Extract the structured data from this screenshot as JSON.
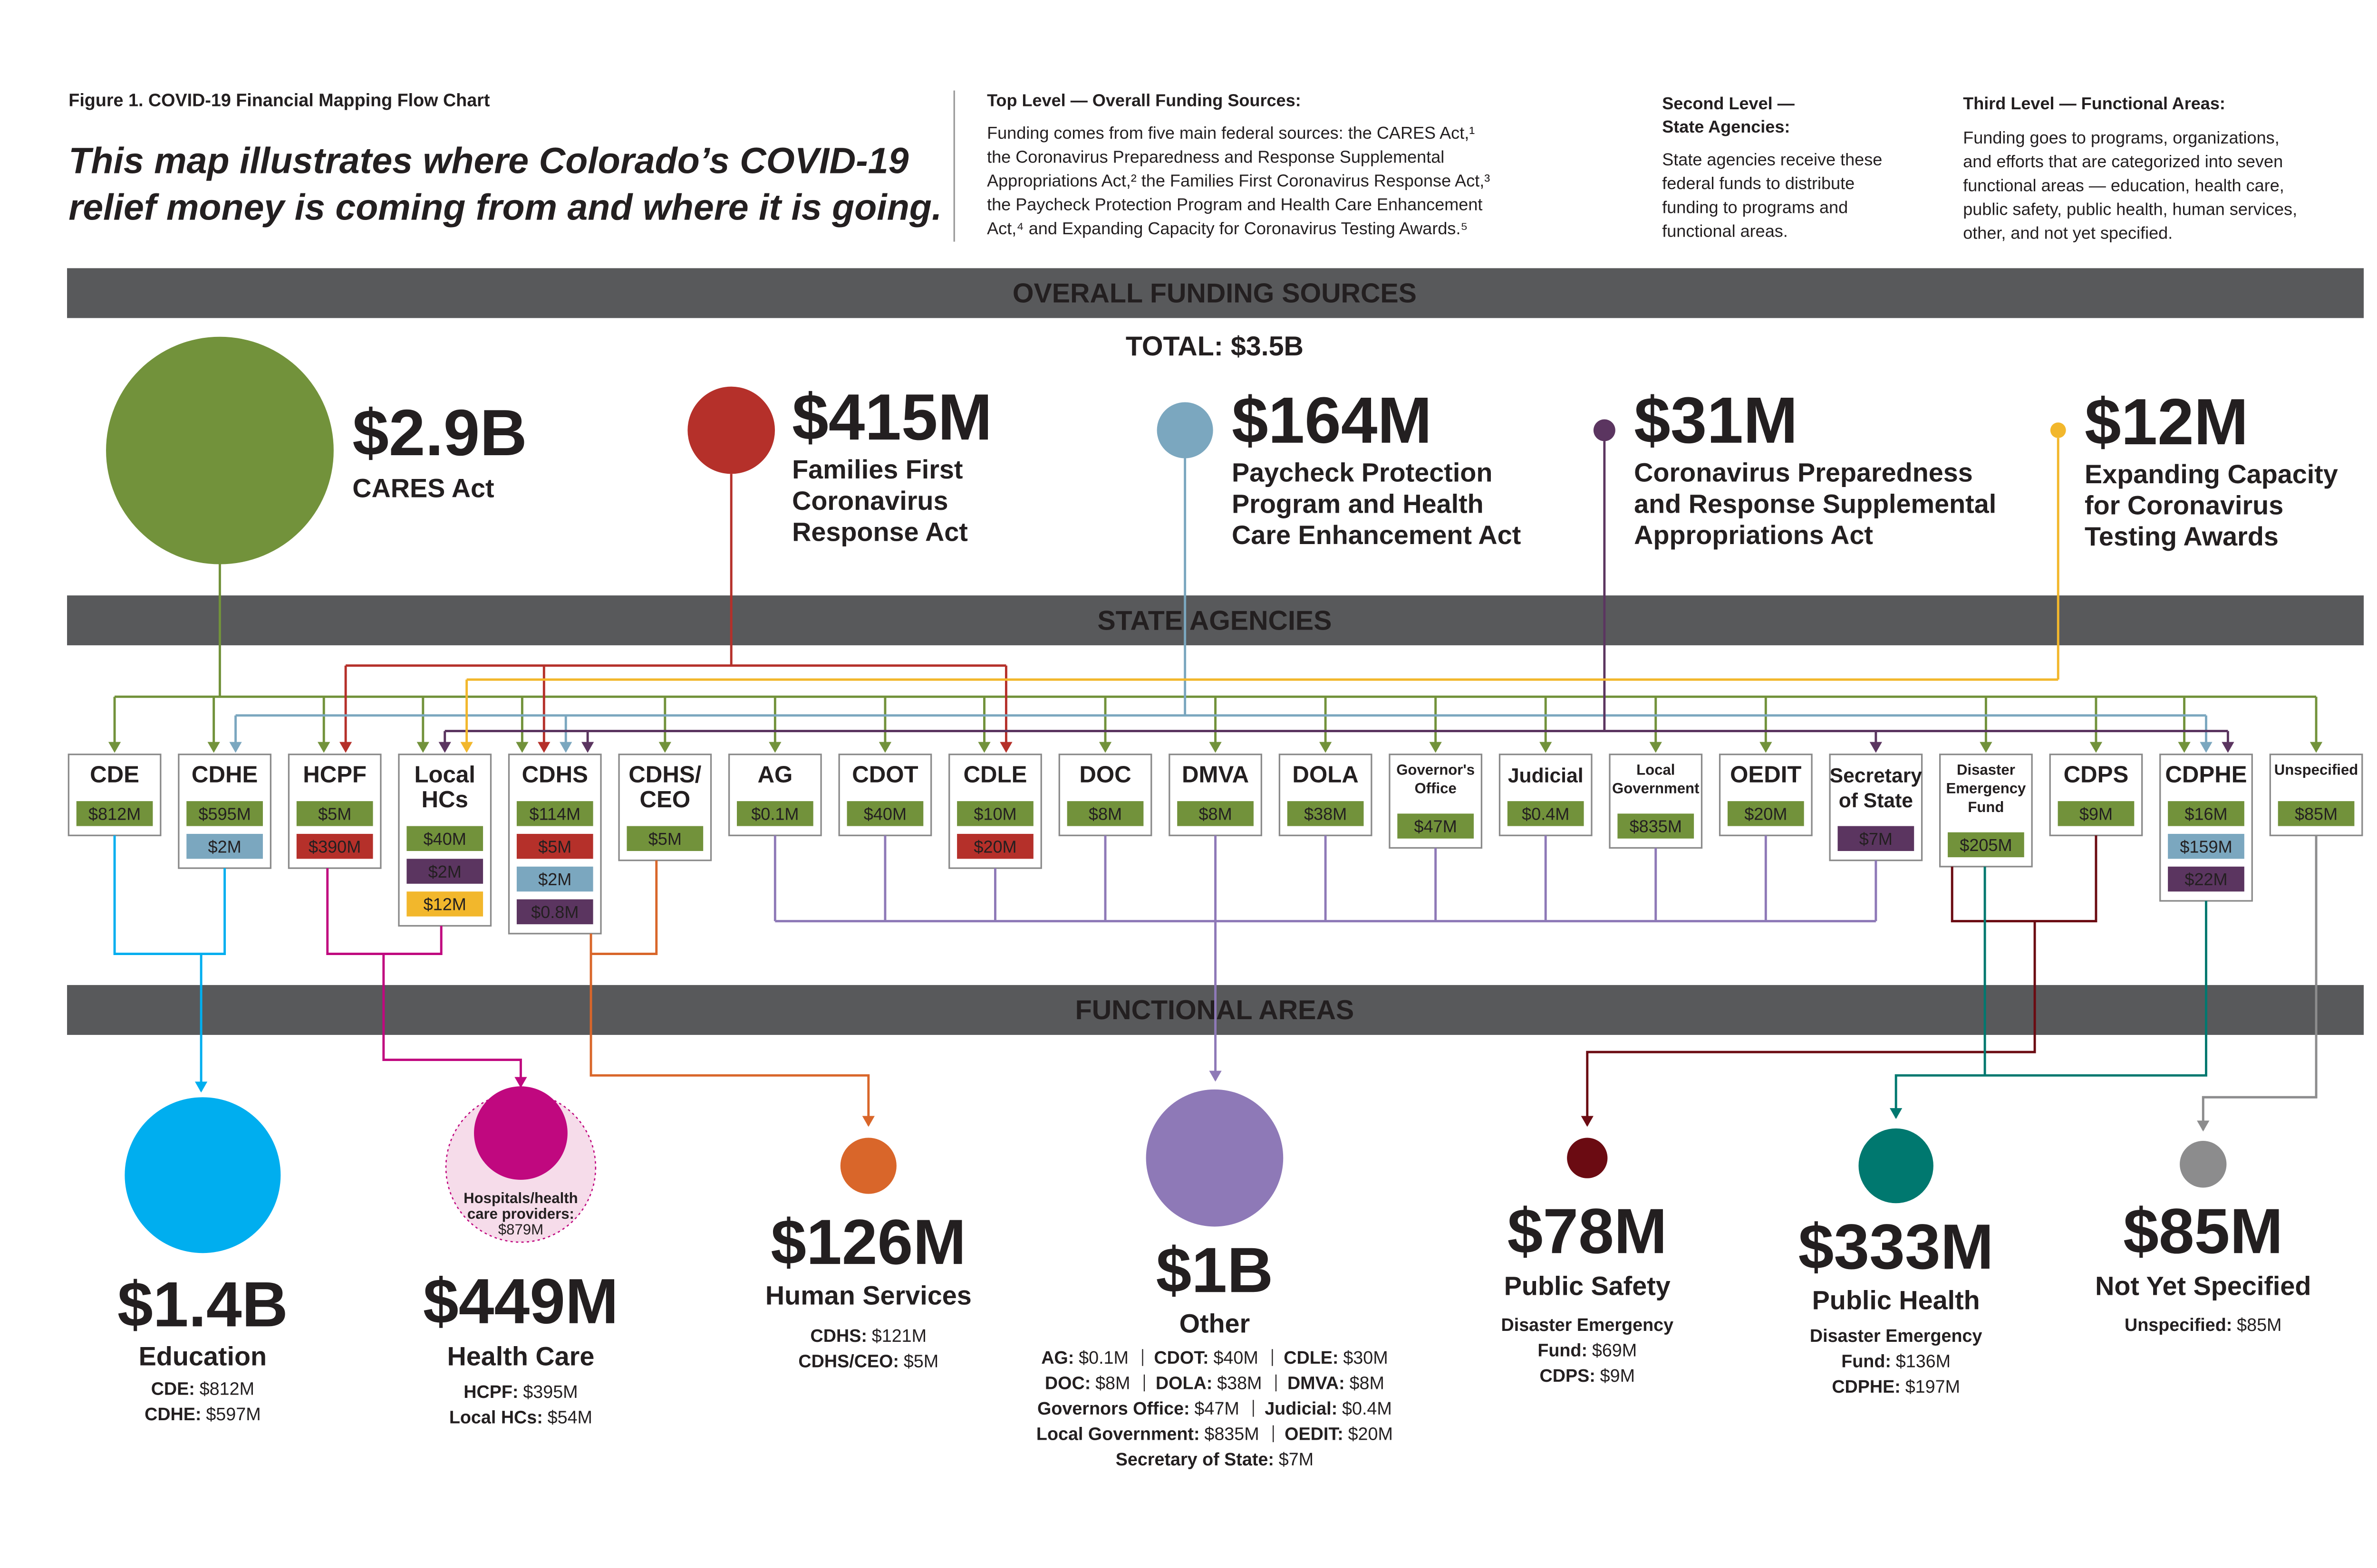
{
  "header": {
    "figure_label": "Figure 1. COVID-19 Financial Mapping Flow Chart",
    "subtitle": [
      "This map illustrates where Colorado’s COVID-19",
      "relief money is coming from and where it is going."
    ],
    "levels": [
      {
        "heading": [
          "Top Level — Overall Funding Sources:"
        ],
        "text": [
          "Funding comes from five main federal sources: the CARES Act,¹",
          "the Coronavirus Preparedness and Response Supplemental",
          "Appropriations Act,² the Families First Coronavirus Response Act,³",
          "the Paycheck Protection Program and Health Care Enhancement",
          "Act,⁴  and Expanding Capacity for Coronavirus Testing Awards.⁵"
        ]
      },
      {
        "heading": [
          "Second Level —",
          "State Agencies:"
        ],
        "text": [
          "State agencies receive these",
          "federal funds to distribute",
          "funding to programs and",
          "functional areas."
        ]
      },
      {
        "heading": [
          "Third Level — Functional Areas:"
        ],
        "text": [
          "Funding goes to programs, organizations,",
          "and efforts that are categorized into seven",
          "functional areas — education, health care,",
          "public safety, public health, human services,",
          "other, and not yet specified."
        ]
      }
    ]
  },
  "bands": [
    "OVERALL FUNDING SOURCES",
    "STATE AGENCIES",
    "FUNCTIONAL AREAS"
  ],
  "total": "TOTAL: $3.5B",
  "sources": [
    {
      "amount": "$2.9B",
      "name": [
        "CARES Act"
      ],
      "color": "#72923b"
    },
    {
      "amount": "$415M",
      "name": [
        "Families First",
        "Coronavirus",
        "Response Act"
      ],
      "color": "#b5302a"
    },
    {
      "amount": "$164M",
      "name": [
        "Paycheck Protection",
        "Program and Health",
        "Care Enhancement Act"
      ],
      "color": "#7ba7bf"
    },
    {
      "amount": "$31M",
      "name": [
        "Coronavirus Preparedness",
        "and Response Supplemental",
        "Appropriations Act"
      ],
      "color": "#5b3560"
    },
    {
      "amount": "$12M",
      "name": [
        "Expanding Capacity",
        "for Coronavirus",
        "Testing Awards"
      ],
      "color": "#f2b72c"
    }
  ],
  "agencies": [
    {
      "name": [
        "CDE"
      ],
      "amounts": [
        {
          "label": "$812M",
          "color": "#72923b"
        }
      ]
    },
    {
      "name": [
        "CDHE"
      ],
      "amounts": [
        {
          "label": "$595M",
          "color": "#72923b"
        },
        {
          "label": "$2M",
          "color": "#7ba7bf"
        }
      ]
    },
    {
      "name": [
        "HCPF"
      ],
      "amounts": [
        {
          "label": "$5M",
          "color": "#72923b"
        },
        {
          "label": "$390M",
          "color": "#b5302a"
        }
      ]
    },
    {
      "name": [
        "Local",
        "HCs"
      ],
      "amounts": [
        {
          "label": "$40M",
          "color": "#72923b"
        },
        {
          "label": "$2M",
          "color": "#5b3560"
        },
        {
          "label": "$12M",
          "color": "#f2b72c"
        }
      ]
    },
    {
      "name": [
        "CDHS"
      ],
      "amounts": [
        {
          "label": "$114M",
          "color": "#72923b"
        },
        {
          "label": "$5M",
          "color": "#b5302a"
        },
        {
          "label": "$2M",
          "color": "#7ba7bf"
        },
        {
          "label": "$0.8M",
          "color": "#5b3560"
        }
      ]
    },
    {
      "name": [
        "CDHS/",
        "CEO"
      ],
      "amounts": [
        {
          "label": "$5M",
          "color": "#72923b"
        }
      ]
    },
    {
      "name": [
        "AG"
      ],
      "amounts": [
        {
          "label": "$0.1M",
          "color": "#72923b"
        }
      ]
    },
    {
      "name": [
        "CDOT"
      ],
      "amounts": [
        {
          "label": "$40M",
          "color": "#72923b"
        }
      ]
    },
    {
      "name": [
        "CDLE"
      ],
      "amounts": [
        {
          "label": "$10M",
          "color": "#72923b"
        },
        {
          "label": "$20M",
          "color": "#b5302a"
        }
      ]
    },
    {
      "name": [
        "DOC"
      ],
      "amounts": [
        {
          "label": "$8M",
          "color": "#72923b"
        }
      ]
    },
    {
      "name": [
        "DMVA"
      ],
      "amounts": [
        {
          "label": "$8M",
          "color": "#72923b"
        }
      ]
    },
    {
      "name": [
        "DOLA"
      ],
      "amounts": [
        {
          "label": "$38M",
          "color": "#72923b"
        }
      ]
    },
    {
      "name": [
        "Governor's",
        "Office"
      ],
      "amounts": [
        {
          "label": "$47M",
          "color": "#72923b"
        }
      ]
    },
    {
      "name": [
        "Judicial"
      ],
      "amounts": [
        {
          "label": "$0.4M",
          "color": "#72923b"
        }
      ]
    },
    {
      "name": [
        "Local",
        "Government"
      ],
      "amounts": [
        {
          "label": "$835M",
          "color": "#72923b"
        }
      ]
    },
    {
      "name": [
        "OEDIT"
      ],
      "amounts": [
        {
          "label": "$20M",
          "color": "#72923b"
        }
      ]
    },
    {
      "name": [
        "Secretary",
        "of State"
      ],
      "amounts": [
        {
          "label": "$7M",
          "color": "#5b3560"
        }
      ]
    },
    {
      "name": [
        "Disaster",
        "Emergency",
        "Fund"
      ],
      "amounts": [
        {
          "label": "$205M",
          "color": "#72923b"
        }
      ]
    },
    {
      "name": [
        "CDPS"
      ],
      "amounts": [
        {
          "label": "$9M",
          "color": "#72923b"
        }
      ]
    },
    {
      "name": [
        "CDPHE"
      ],
      "amounts": [
        {
          "label": "$16M",
          "color": "#72923b"
        },
        {
          "label": "$159M",
          "color": "#7ba7bf"
        },
        {
          "label": "$22M",
          "color": "#5b3560"
        }
      ]
    },
    {
      "name": [
        "Unspecified"
      ],
      "amounts": [
        {
          "label": "$85M",
          "color": "#72923b"
        }
      ]
    }
  ],
  "areas": [
    {
      "amount": "$1.4B",
      "name": "Education",
      "color": "#00aeef",
      "details": [
        [
          {
            "name": "CDE:",
            "amount": "$812M"
          }
        ],
        [
          {
            "name": "CDHE:",
            "amount": "$597M"
          }
        ]
      ]
    },
    {
      "amount": "$449M",
      "name": "Health Care",
      "color": "#c0087f",
      "inset": [
        "Hospitals/health",
        "care providers:",
        "$879M"
      ],
      "details": [
        [
          {
            "name": "HCPF:",
            "amount": "$395M"
          }
        ],
        [
          {
            "name": "Local HCs:",
            "amount": "$54M"
          }
        ]
      ]
    },
    {
      "amount": "$126M",
      "name": "Human Services",
      "color": "#d9662a",
      "details": [
        [
          {
            "name": "CDHS:",
            "amount": "$121M"
          }
        ],
        [
          {
            "name": "CDHS/CEO:",
            "amount": "$5M"
          }
        ]
      ]
    },
    {
      "amount": "$1B",
      "name": "Other",
      "color": "#8e79b7",
      "details": [
        [
          {
            "name": "AG:",
            "amount": "$0.1M"
          },
          {
            "name": "CDOT:",
            "amount": "$40M"
          },
          {
            "name": "CDLE:",
            "amount": "$30M"
          }
        ],
        [
          {
            "name": "DOC:",
            "amount": "$8M"
          },
          {
            "name": "DOLA:",
            "amount": "$38M"
          },
          {
            "name": "DMVA:",
            "amount": "$8M"
          }
        ],
        [
          {
            "name": "Governors Office:",
            "amount": "$47M"
          },
          {
            "name": "Judicial:",
            "amount": "$0.4M"
          }
        ],
        [
          {
            "name": "Local Government:",
            "amount": "$835M"
          },
          {
            "name": "OEDIT:",
            "amount": "$20M"
          }
        ],
        [
          {
            "name": "Secretary of State:",
            "amount": "$7M"
          }
        ]
      ]
    },
    {
      "amount": "$78M",
      "name": "Public Safety",
      "color": "#6b0b12",
      "details": [
        [
          {
            "name": "Disaster Emergency"
          }
        ],
        [
          {
            "name": "Fund:",
            "amount": "$69M"
          }
        ],
        [
          {
            "name": "CDPS:",
            "amount": "$9M"
          }
        ]
      ]
    },
    {
      "amount": "$333M",
      "name": "Public Health",
      "color": "#00786f",
      "details": [
        [
          {
            "name": "Disaster Emergency"
          }
        ],
        [
          {
            "name": "Fund:",
            "amount": "$136M"
          }
        ],
        [
          {
            "name": "CDPHE:",
            "amount": "$197M"
          }
        ]
      ]
    },
    {
      "amount": "$85M",
      "name": "Not Yet Specified",
      "color": "#8c8c8d",
      "details": [
        [
          {
            "name": "Unspecified:",
            "amount": "$85M"
          }
        ]
      ]
    }
  ]
}
